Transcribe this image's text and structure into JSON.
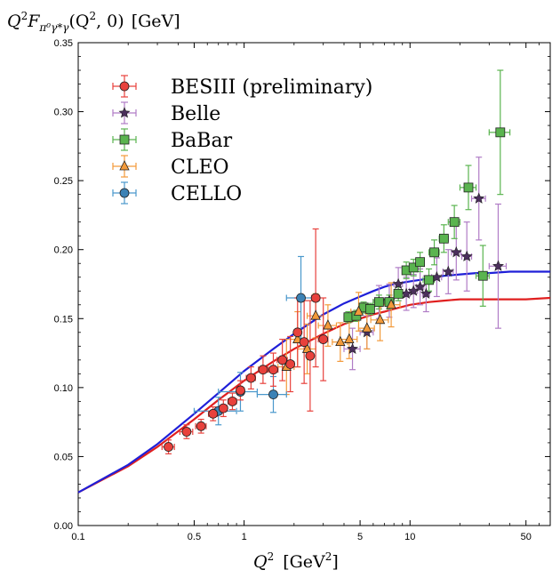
{
  "chart_data": {
    "type": "scatter",
    "ylabel": "Q²F_{π⁰γ*γ}(Q², 0) [GeV]",
    "ylabel_parts": {
      "q": "Q",
      "q_exp": "2",
      "f": "F",
      "f_sub": "π⁰γ*γ",
      "args": "(Q",
      "args_exp": "2",
      "args_tail": ", 0)",
      "unit": "[GeV]"
    },
    "xlabel": "Q² [GeV²]",
    "xlabel_parts": {
      "q": "Q",
      "q_exp": "2",
      "unit": "[GeV",
      "unit_exp": "2",
      "unit_tail": "]"
    },
    "x_scale": "log",
    "xlim": [
      0.1,
      70
    ],
    "ylim": [
      0.0,
      0.35
    ],
    "x_ticks": [
      {
        "value": 0.1,
        "label": "0.1"
      },
      {
        "value": 0.5,
        "label": "0.5"
      },
      {
        "value": 1,
        "label": "1"
      },
      {
        "value": 5,
        "label": "5"
      },
      {
        "value": 10,
        "label": "10"
      },
      {
        "value": 50,
        "label": "50"
      }
    ],
    "y_ticks": [
      {
        "value": 0.0,
        "label": "0.00"
      },
      {
        "value": 0.05,
        "label": "0.05"
      },
      {
        "value": 0.1,
        "label": "0.10"
      },
      {
        "value": 0.15,
        "label": "0.15"
      },
      {
        "value": 0.2,
        "label": "0.20"
      },
      {
        "value": 0.25,
        "label": "0.25"
      },
      {
        "value": 0.3,
        "label": "0.30"
      },
      {
        "value": 0.35,
        "label": "0.35"
      }
    ],
    "legend_position": "top-left",
    "series": [
      {
        "name": "BESIII (preliminary)",
        "marker": "circle",
        "fill": "#e8413c",
        "bar": "#e8413c",
        "points": [
          [
            0.35,
            0.057,
            0.03,
            0.005
          ],
          [
            0.45,
            0.068,
            0.04,
            0.005
          ],
          [
            0.55,
            0.072,
            0.04,
            0.005
          ],
          [
            0.65,
            0.081,
            0.04,
            0.005
          ],
          [
            0.75,
            0.085,
            0.04,
            0.006
          ],
          [
            0.85,
            0.09,
            0.05,
            0.006
          ],
          [
            0.95,
            0.098,
            0.05,
            0.007
          ],
          [
            1.1,
            0.107,
            0.07,
            0.008
          ],
          [
            1.3,
            0.113,
            0.08,
            0.01
          ],
          [
            1.5,
            0.113,
            0.1,
            0.012
          ],
          [
            1.7,
            0.12,
            0.12,
            0.015
          ],
          [
            1.9,
            0.117,
            0.1,
            0.02
          ],
          [
            2.1,
            0.14,
            0.1,
            0.025
          ],
          [
            2.3,
            0.133,
            0.1,
            0.03
          ],
          [
            2.5,
            0.123,
            0.1,
            0.04
          ],
          [
            2.7,
            0.165,
            0.15,
            0.05
          ],
          [
            3.0,
            0.135,
            0.2,
            0.03
          ]
        ]
      },
      {
        "name": "Belle",
        "marker": "star",
        "fill": "#4b2f5c",
        "bar": "#b07cc6",
        "points": [
          [
            4.5,
            0.128,
            0.5,
            0.015
          ],
          [
            5.5,
            0.14,
            0.5,
            0.012
          ],
          [
            6.5,
            0.162,
            0.5,
            0.012
          ],
          [
            7.5,
            0.163,
            0.5,
            0.012
          ],
          [
            8.5,
            0.175,
            0.5,
            0.012
          ],
          [
            9.5,
            0.168,
            0.5,
            0.012
          ],
          [
            10.5,
            0.17,
            0.6,
            0.012
          ],
          [
            11.5,
            0.173,
            0.6,
            0.013
          ],
          [
            12.5,
            0.168,
            0.6,
            0.013
          ],
          [
            14.5,
            0.18,
            1.0,
            0.014
          ],
          [
            17,
            0.184,
            1.2,
            0.016
          ],
          [
            19,
            0.198,
            1.2,
            0.02
          ],
          [
            22,
            0.195,
            1.5,
            0.025
          ],
          [
            26,
            0.237,
            2.5,
            0.03
          ],
          [
            34,
            0.188,
            4,
            0.045
          ]
        ]
      },
      {
        "name": "BaBar",
        "marker": "square",
        "fill": "#5ab44f",
        "bar": "#5ab44f",
        "points": [
          [
            4.25,
            0.151,
            0.25,
            0.004
          ],
          [
            4.75,
            0.152,
            0.25,
            0.004
          ],
          [
            5.25,
            0.158,
            0.25,
            0.004
          ],
          [
            5.75,
            0.157,
            0.25,
            0.004
          ],
          [
            6.5,
            0.162,
            0.5,
            0.005
          ],
          [
            7.5,
            0.162,
            0.5,
            0.005
          ],
          [
            8.5,
            0.168,
            0.5,
            0.005
          ],
          [
            9.5,
            0.185,
            0.5,
            0.006
          ],
          [
            10.5,
            0.187,
            0.5,
            0.006
          ],
          [
            11.5,
            0.191,
            0.5,
            0.007
          ],
          [
            13,
            0.178,
            1.0,
            0.008
          ],
          [
            14,
            0.198,
            1.0,
            0.009
          ],
          [
            16,
            0.208,
            1.0,
            0.01
          ],
          [
            18.5,
            0.22,
            1.5,
            0.012
          ],
          [
            22.5,
            0.245,
            2.5,
            0.016
          ],
          [
            27.5,
            0.181,
            2.5,
            0.022
          ],
          [
            35,
            0.285,
            5,
            0.045
          ]
        ]
      },
      {
        "name": "CLEO",
        "marker": "triangle",
        "fill": "#f39a3a",
        "bar": "#f39a3a",
        "points": [
          [
            1.8,
            0.115,
            0.2,
            0.02
          ],
          [
            2.1,
            0.135,
            0.2,
            0.02
          ],
          [
            2.4,
            0.128,
            0.3,
            0.018
          ],
          [
            2.7,
            0.152,
            0.3,
            0.016
          ],
          [
            3.2,
            0.145,
            0.4,
            0.015
          ],
          [
            3.8,
            0.133,
            0.4,
            0.014
          ],
          [
            4.3,
            0.135,
            0.5,
            0.014
          ],
          [
            4.9,
            0.155,
            0.5,
            0.014
          ],
          [
            5.5,
            0.143,
            0.6,
            0.015
          ],
          [
            6.6,
            0.149,
            0.8,
            0.015
          ],
          [
            7.7,
            0.16,
            1.0,
            0.016
          ]
        ]
      },
      {
        "name": "CELLO",
        "marker": "circle",
        "fill": "#3c82b5",
        "bar": "#4a98cc",
        "points": [
          [
            0.7,
            0.083,
            0.2,
            0.01
          ],
          [
            0.95,
            0.097,
            0.25,
            0.014
          ],
          [
            1.5,
            0.095,
            0.3,
            0.013
          ],
          [
            2.2,
            0.165,
            0.4,
            0.03
          ]
        ]
      }
    ],
    "curves": [
      {
        "color": "#e01f1f",
        "x": [
          0.1,
          0.2,
          0.3,
          0.5,
          0.7,
          1,
          1.5,
          2,
          3,
          4,
          5,
          6,
          7,
          8,
          10,
          13,
          16,
          20,
          25,
          30,
          40,
          50,
          70
        ],
        "y": [
          0.024,
          0.043,
          0.057,
          0.077,
          0.091,
          0.105,
          0.119,
          0.128,
          0.139,
          0.146,
          0.15,
          0.153,
          0.155,
          0.157,
          0.16,
          0.162,
          0.163,
          0.164,
          0.164,
          0.164,
          0.164,
          0.164,
          0.165
        ]
      },
      {
        "color": "#1f1fd8",
        "x": [
          0.1,
          0.2,
          0.3,
          0.5,
          0.7,
          1,
          1.5,
          2,
          3,
          4,
          5,
          6,
          7,
          8,
          10,
          13,
          16,
          20,
          25,
          30,
          40,
          50,
          70
        ],
        "y": [
          0.024,
          0.044,
          0.059,
          0.081,
          0.096,
          0.112,
          0.128,
          0.139,
          0.153,
          0.161,
          0.166,
          0.17,
          0.173,
          0.175,
          0.177,
          0.179,
          0.181,
          0.182,
          0.183,
          0.183,
          0.184,
          0.184,
          0.184
        ]
      }
    ]
  }
}
